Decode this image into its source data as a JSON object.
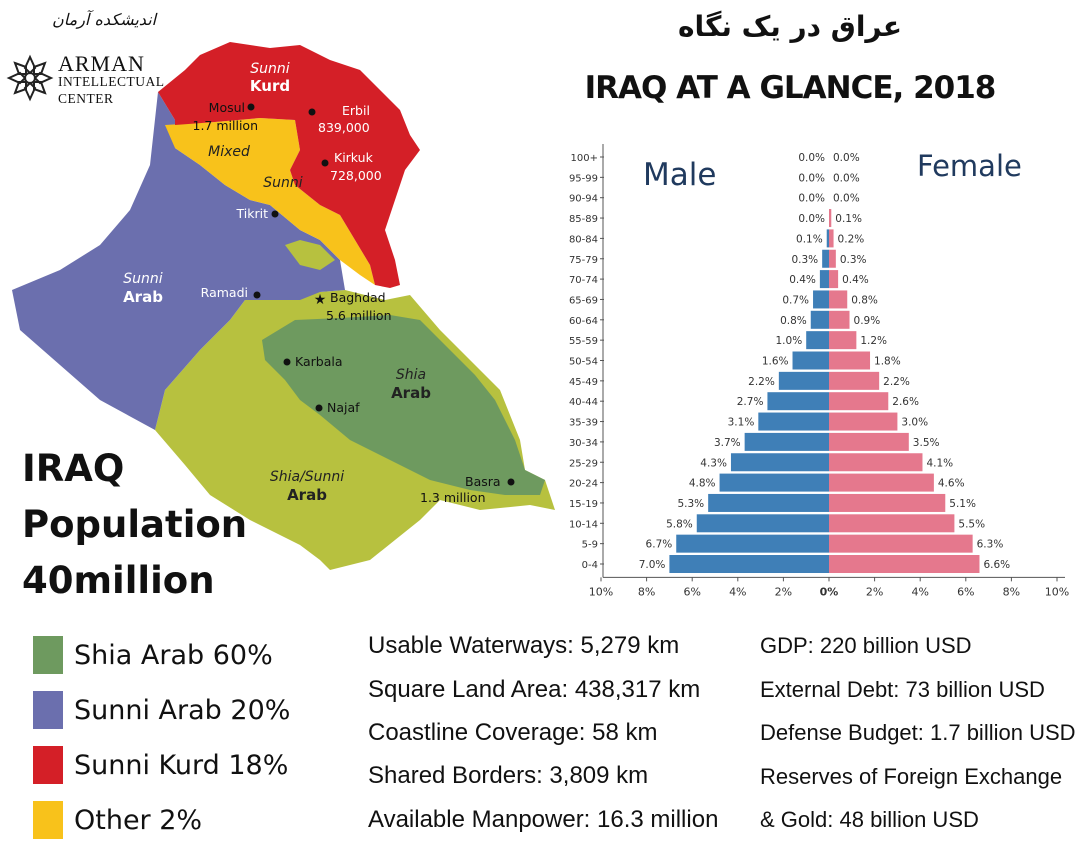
{
  "logo": {
    "persian": "اندیشکده آرمان",
    "line1": "ARMAN",
    "line2": "INTELLECTUAL",
    "line3": "CENTER"
  },
  "title": {
    "persian": "عراق در یک نگاه",
    "english": "IRAQ AT A GLANCE, 2018"
  },
  "headline": {
    "line1": "IRAQ",
    "line2": "Population",
    "line3": "40million"
  },
  "map": {
    "regions": [
      {
        "name": "shia-arab",
        "color": "#6e9a5f"
      },
      {
        "name": "sunni-arab",
        "color": "#6b6fae"
      },
      {
        "name": "sunni-kurd",
        "color": "#d41f27"
      },
      {
        "name": "mixed",
        "color": "#f8c21b"
      },
      {
        "name": "shia-sunni-arab",
        "color": "#b7c13f"
      }
    ],
    "labels": {
      "sunni_kurd_1": "Sunni",
      "sunni_kurd_2": "Kurd",
      "mixed": "Mixed",
      "sunni": "Sunni",
      "sunni_arab_1": "Sunni",
      "sunni_arab_2": "Arab",
      "shia_arab_1": "Shia",
      "shia_arab_2": "Arab",
      "shia_sunni_1": "Shia/Sunni",
      "shia_sunni_2": "Arab"
    },
    "cities": {
      "mosul": "Mosul",
      "mosul_pop": "1.7 million",
      "erbil": "Erbil",
      "erbil_pop": "839,000",
      "kirkuk": "Kirkuk",
      "kirkuk_pop": "728,000",
      "tikrit": "Tikrit",
      "ramadi": "Ramadi",
      "baghdad": "Baghdad",
      "baghdad_pop": "5.6 million",
      "karbala": "Karbala",
      "najaf": "Najaf",
      "basra": "Basra",
      "basra_pop": "1.3 million"
    }
  },
  "legend": [
    {
      "label": "Shia Arab 60%",
      "color": "#6e9a5f"
    },
    {
      "label": "Sunni Arab 20%",
      "color": "#6b6fae"
    },
    {
      "label": "Sunni Kurd 18%",
      "color": "#d41f27"
    },
    {
      "label": "Other 2%",
      "color": "#f8c21b"
    }
  ],
  "facts_left": [
    "Usable Waterways:  5,279 km",
    "Square Land Area: 438,317 km",
    "Coastline Coverage: 58 km",
    "Shared Borders: 3,809 km",
    "Available Manpower: 16.3 million"
  ],
  "facts_right": [
    "GDP: 220 billion USD",
    "External Debt: 73 billion USD",
    "Defense Budget: 1.7 billion USD",
    "Reserves of Foreign Exchange",
    "& Gold: 48 billion USD"
  ],
  "chart_data": {
    "type": "bar",
    "orientation": "horizontal",
    "subtype": "population-pyramid",
    "categories": [
      "100+",
      "95-99",
      "90-94",
      "85-89",
      "80-84",
      "75-79",
      "70-74",
      "65-69",
      "60-64",
      "55-59",
      "50-54",
      "45-49",
      "40-44",
      "35-39",
      "30-34",
      "25-29",
      "20-24",
      "15-19",
      "10-14",
      "5-9",
      "0-4"
    ],
    "series": [
      {
        "name": "Male",
        "color": "#3f7fb7",
        "values": [
          0.0,
          0.0,
          0.0,
          0.0,
          0.1,
          0.3,
          0.4,
          0.7,
          0.8,
          1.0,
          1.6,
          2.2,
          2.7,
          3.1,
          3.7,
          4.3,
          4.8,
          5.3,
          5.8,
          6.7,
          7.0
        ],
        "labels": [
          "0.0%",
          "0.0%",
          "0.0%",
          "0.0%",
          "0.1%",
          "0.3%",
          "0.4%",
          "0.7%",
          "0.8%",
          "1.0%",
          "1.6%",
          "2.2%",
          "2.7%",
          "3.1%",
          "3.7%",
          "4.3%",
          "4.8%",
          "5.3%",
          "5.8%",
          "6.7%",
          "7.0%"
        ]
      },
      {
        "name": "Female",
        "color": "#e5788d",
        "values": [
          0.0,
          0.0,
          0.0,
          0.1,
          0.2,
          0.3,
          0.4,
          0.8,
          0.9,
          1.2,
          1.8,
          2.2,
          2.6,
          3.0,
          3.5,
          4.1,
          4.6,
          5.1,
          5.5,
          6.3,
          6.6
        ],
        "labels": [
          "0.0%",
          "0.0%",
          "0.0%",
          "0.1%",
          "0.2%",
          "0.3%",
          "0.4%",
          "0.8%",
          "0.9%",
          "1.2%",
          "1.8%",
          "2.2%",
          "2.6%",
          "3.0%",
          "3.5%",
          "4.1%",
          "4.6%",
          "5.1%",
          "5.5%",
          "6.3%",
          "6.6%"
        ]
      }
    ],
    "xticks": [
      "10%",
      "8%",
      "6%",
      "4%",
      "2%",
      "0%",
      "2%",
      "4%",
      "6%",
      "8%",
      "10%"
    ],
    "xlim": [
      -10,
      10
    ],
    "grid": false,
    "legend": "inline-top"
  }
}
